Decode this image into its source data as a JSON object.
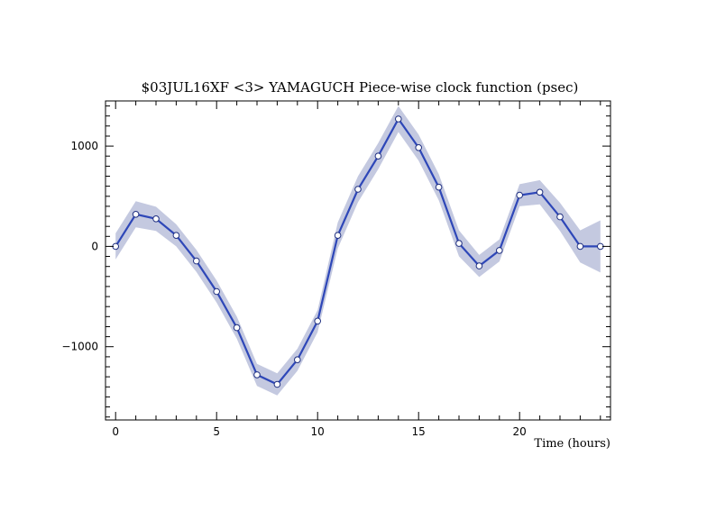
{
  "chart_data": {
    "type": "line",
    "title": "$03JUL16XF <3>  YAMAGUCH  Piece-wise clock function (psec)",
    "xlabel": "Time (hours)",
    "ylabel": "",
    "xlim": [
      -0.5,
      24.5
    ],
    "ylim": [
      -1730,
      1450
    ],
    "xticks": [
      0,
      5,
      10,
      15,
      20
    ],
    "xtick_labels": [
      "0",
      "5",
      "10",
      "15",
      "20"
    ],
    "yticks": [
      -1000,
      0,
      1000
    ],
    "ytick_labels": [
      "−1000",
      "0",
      "1000"
    ],
    "grid": false,
    "legend": "none",
    "series": [
      {
        "x": [
          0,
          1,
          2,
          3,
          4,
          5,
          6,
          7,
          8,
          9,
          10,
          11,
          12,
          13,
          14,
          15,
          16,
          17,
          18,
          19,
          20,
          21,
          22,
          23,
          24
        ],
        "y": [
          0,
          320,
          275,
          110,
          -145,
          -450,
          -810,
          -1280,
          -1375,
          -1130,
          -745,
          110,
          570,
          900,
          1270,
          985,
          590,
          30,
          -195,
          -40,
          510,
          540,
          295,
          0,
          0
        ],
        "err": [
          130,
          130,
          120,
          110,
          110,
          110,
          110,
          110,
          110,
          110,
          110,
          130,
          130,
          130,
          130,
          130,
          130,
          130,
          110,
          110,
          110,
          120,
          140,
          160,
          260
        ]
      }
    ],
    "colors": {
      "line": "#2e47b8",
      "band": "#c4c9e0",
      "marker_fill": "#ffffff",
      "marker_edge": "#1f2f80",
      "axis": "#000000"
    }
  }
}
